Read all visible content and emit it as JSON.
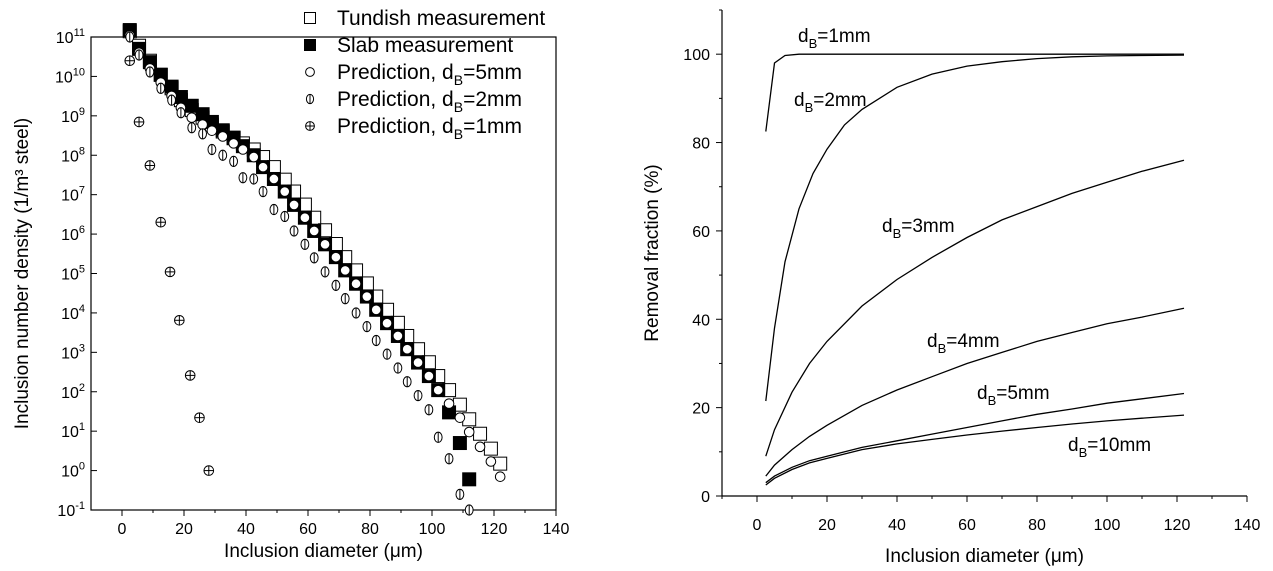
{
  "chart_data": [
    {
      "type": "scatter",
      "xlabel": "Inclusion diameter (μm)",
      "ylabel": "Inclusion number density (1/m³ steel)",
      "xlim": [
        -10,
        140
      ],
      "ylim": [
        0.1,
        100000000000
      ],
      "yscale": "log",
      "x_ticks": [
        "0",
        "20",
        "40",
        "60",
        "80",
        "100",
        "120",
        "140"
      ],
      "y_tick_exponents": [
        "-1",
        "0",
        "1",
        "2",
        "3",
        "4",
        "5",
        "6",
        "7",
        "8",
        "9",
        "10",
        "11"
      ],
      "legend_position": "top-right, outside axes",
      "series": [
        {
          "name": "Tundish measurement",
          "marker": "open-square",
          "x": [
            2.5,
            5.5,
            9,
            12.5,
            16,
            19,
            22.5,
            26,
            29,
            32.5,
            36,
            39,
            42.5,
            45.5,
            49,
            52.5,
            55.5,
            59,
            62,
            65.5,
            69,
            72,
            75.5,
            79,
            82,
            85.5,
            89,
            92,
            95.5,
            99,
            102,
            105.5,
            109,
            112,
            115.5,
            119,
            122
          ],
          "y": [
            140000000000.0,
            60000000000.0,
            25000000000.0,
            11000000000.0,
            5000000000.0,
            2500000000.0,
            1400000000.0,
            900000000.0,
            600000000.0,
            400000000.0,
            280000000.0,
            200000000.0,
            140000000.0,
            90000000.0,
            50000000.0,
            24000000.0,
            12000000.0,
            5600000.0,
            2600000.0,
            1250000.0,
            560000.0,
            260000.0,
            120000.0,
            56000.0,
            26000.0,
            12000.0,
            5600,
            2600,
            1200,
            560,
            250,
            110,
            47,
            20,
            8.6,
            3.6,
            1.5
          ]
        },
        {
          "name": "Slab measurement",
          "marker": "filled-square",
          "x": [
            2.5,
            5.5,
            9,
            12.5,
            16,
            19,
            22.5,
            26,
            29,
            32.5,
            36,
            39,
            42.5,
            45.5,
            49,
            52.5,
            55.5,
            59,
            62,
            65.5,
            69,
            72,
            75.5,
            79,
            82,
            85.5,
            89,
            92,
            95.5,
            99,
            102,
            105.5,
            109,
            112
          ],
          "y": [
            150000000000.0,
            50000000000.0,
            23000000000.0,
            11000000000.0,
            5500000000.0,
            3000000000.0,
            1800000000.0,
            1100000000.0,
            700000000.0,
            430000000.0,
            270000000.0,
            170000000.0,
            100000000.0,
            50000000.0,
            25000000.0,
            12000000.0,
            5500000.0,
            2600000.0,
            1200000.0,
            550000.0,
            260000.0,
            120000.0,
            55000.0,
            26000.0,
            12000.0,
            5500.0,
            2600,
            1200,
            550,
            250,
            110,
            30,
            5,
            0.6
          ]
        },
        {
          "name": "Prediction, d_B=5mm",
          "marker": "open-circle",
          "x": [
            2.5,
            5.5,
            9,
            12.5,
            16,
            19,
            22.5,
            26,
            29,
            32.5,
            36,
            39,
            42.5,
            45.5,
            49,
            52.5,
            55.5,
            59,
            62,
            65.5,
            69,
            72,
            75.5,
            79,
            82,
            85.5,
            89,
            92,
            95.5,
            99,
            102,
            105.5,
            109,
            112,
            115.5,
            119,
            122
          ],
          "y": [
            110000000000.0,
            40000000000.0,
            16000000000.0,
            7000000000.0,
            3200000000.0,
            1600000000.0,
            900000000.0,
            600000000.0,
            420000000.0,
            300000000.0,
            200000000.0,
            140000000.0,
            90000000.0,
            50000000.0,
            25000000.0,
            12000000.0,
            5500000.0,
            2600000.0,
            1200000.0,
            550000.0,
            260000.0,
            120000.0,
            55000.0,
            26000.0,
            12000.0,
            5500.0,
            2600,
            1200,
            550,
            250,
            110,
            50,
            22,
            9.5,
            4,
            1.7,
            0.7
          ]
        },
        {
          "name": "Prediction, d_B=2mm",
          "marker": "circle-vertical-bar",
          "x": [
            2.5,
            5.5,
            9,
            12.5,
            16,
            19,
            22.5,
            26,
            29,
            32.5,
            36,
            39,
            42.5,
            45.5,
            49,
            52.5,
            55.5,
            59,
            62,
            65.5,
            69,
            72,
            75.5,
            79,
            82,
            85.5,
            89,
            92,
            95.5,
            99,
            102,
            105.5,
            109,
            112
          ],
          "y": [
            100000000000.0,
            35000000000.0,
            13000000000.0,
            5000000000.0,
            2500000000.0,
            1200000000.0,
            500000000.0,
            350000000.0,
            140000000.0,
            100000000.0,
            70000000.0,
            27000000.0,
            25000000.0,
            12000000.0,
            4200000.0,
            2800000.0,
            1200000.0,
            550000.0,
            250000.0,
            110000.0,
            50000.0,
            23000.0,
            10000.0,
            4500.0,
            2000,
            900,
            400,
            180,
            80,
            35,
            7,
            2,
            0.25,
            0.1
          ]
        },
        {
          "name": "Prediction, d_B=1mm",
          "marker": "circle-plus",
          "x": [
            2.5,
            5.5,
            9,
            12.5,
            15.5,
            18.5,
            22,
            25,
            28
          ],
          "y": [
            25000000000.0,
            700000000.0,
            55000000.0,
            2000000.0,
            110000.0,
            6500.0,
            260,
            22,
            1
          ]
        }
      ]
    },
    {
      "type": "line",
      "xlabel": "Inclusion diameter (μm)",
      "ylabel": "Removal fraction (%)",
      "xlim": [
        -10,
        140
      ],
      "ylim": [
        0,
        110
      ],
      "x_ticks": [
        "0",
        "20",
        "40",
        "60",
        "80",
        "100",
        "120",
        "140"
      ],
      "y_ticks": [
        "0",
        "20",
        "40",
        "60",
        "80",
        "100"
      ],
      "series": [
        {
          "name": "d_B=1mm",
          "label_prefix": "d",
          "label_sub": "B",
          "label_suffix": "=1mm",
          "x": [
            2.5,
            5,
            8,
            12,
            20,
            40,
            80,
            122
          ],
          "y": [
            82.5,
            98,
            99.7,
            100,
            100,
            100,
            100,
            100
          ]
        },
        {
          "name": "d_B=2mm",
          "label_prefix": "d",
          "label_sub": "B",
          "label_suffix": "=2mm",
          "x": [
            2.5,
            5,
            8,
            12,
            16,
            20,
            25,
            30,
            40,
            50,
            60,
            70,
            80,
            90,
            100,
            110,
            122
          ],
          "y": [
            21.5,
            38,
            53,
            65,
            73,
            78.5,
            84,
            87.5,
            92.5,
            95.5,
            97.3,
            98.3,
            99,
            99.4,
            99.6,
            99.7,
            99.8
          ]
        },
        {
          "name": "d_B=3mm",
          "label_prefix": "d",
          "label_sub": "B",
          "label_suffix": "=3mm",
          "x": [
            2.5,
            5,
            10,
            15,
            20,
            30,
            40,
            50,
            60,
            70,
            80,
            90,
            100,
            110,
            122
          ],
          "y": [
            9,
            15,
            23.5,
            30,
            35,
            43,
            49,
            54,
            58.5,
            62.5,
            65.5,
            68.5,
            71,
            73.5,
            76
          ]
        },
        {
          "name": "d_B=4mm",
          "label_prefix": "d",
          "label_sub": "B",
          "label_suffix": "=4mm",
          "x": [
            2.5,
            5,
            10,
            15,
            20,
            30,
            40,
            50,
            60,
            70,
            80,
            90,
            100,
            110,
            122
          ],
          "y": [
            4.5,
            7,
            10.5,
            13.5,
            16,
            20.5,
            24,
            27,
            30,
            32.5,
            35,
            37,
            39,
            40.5,
            42.5
          ]
        },
        {
          "name": "d_B=5mm",
          "label_prefix": "d",
          "label_sub": "B",
          "label_suffix": "=5mm",
          "x": [
            2.5,
            5,
            10,
            15,
            20,
            30,
            40,
            50,
            60,
            70,
            80,
            90,
            100,
            110,
            122
          ],
          "y": [
            3,
            4.5,
            6.5,
            8,
            9,
            11,
            12.5,
            14,
            15.5,
            17,
            18.5,
            19.7,
            21,
            22,
            23.2
          ]
        },
        {
          "name": "d_B=10mm",
          "label_prefix": "d",
          "label_sub": "B",
          "label_suffix": "=10mm",
          "x": [
            2.5,
            5,
            10,
            15,
            20,
            30,
            40,
            50,
            60,
            70,
            80,
            90,
            100,
            110,
            122
          ],
          "y": [
            2.5,
            4,
            6,
            7.5,
            8.5,
            10.5,
            11.8,
            12.8,
            13.8,
            14.7,
            15.5,
            16.3,
            17,
            17.6,
            18.3
          ]
        }
      ]
    }
  ]
}
